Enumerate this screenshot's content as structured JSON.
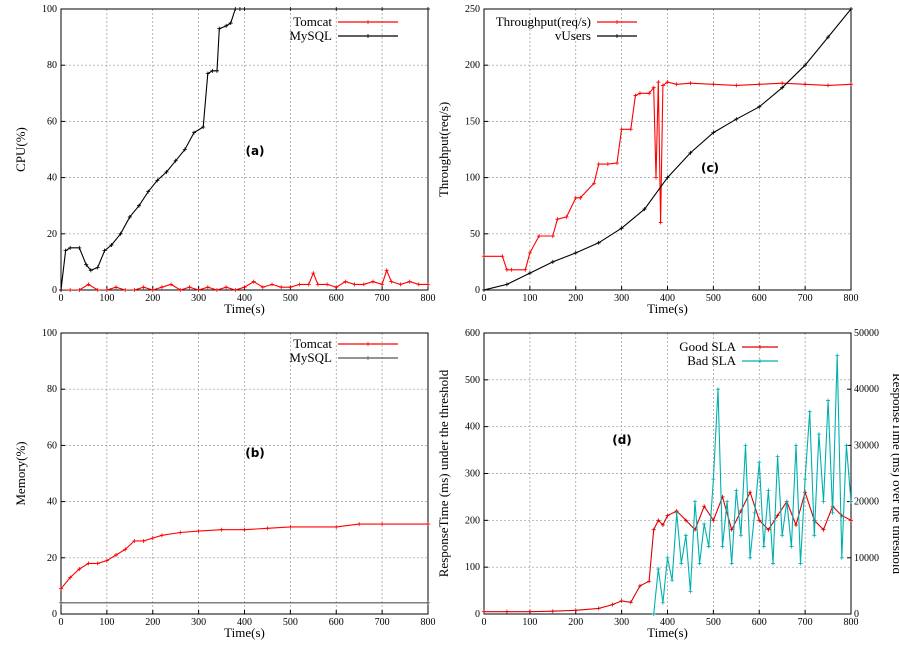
{
  "chart_data": [
    {
      "id": "a",
      "type": "line",
      "panel_label": "(a)",
      "xlabel": "Time(s)",
      "ylabel": "CPU(%)",
      "xlim": [
        0,
        800
      ],
      "ylim": [
        0,
        100
      ],
      "xticks": [
        0,
        100,
        200,
        300,
        400,
        500,
        600,
        700,
        800
      ],
      "yticks": [
        0,
        20,
        40,
        60,
        80,
        100
      ],
      "grid": true,
      "legend_position": "top-right",
      "series": [
        {
          "name": "Tomcat",
          "color": "#ff0000",
          "x": [
            0,
            20,
            40,
            60,
            80,
            100,
            120,
            140,
            160,
            180,
            200,
            220,
            240,
            260,
            280,
            300,
            320,
            340,
            360,
            380,
            400,
            420,
            440,
            460,
            480,
            500,
            520,
            540,
            550,
            560,
            580,
            600,
            620,
            640,
            660,
            680,
            700,
            710,
            720,
            740,
            760,
            780,
            800
          ],
          "y": [
            0,
            0,
            0,
            2,
            0,
            0,
            1,
            0,
            0,
            1,
            0,
            1,
            2,
            0,
            1,
            0,
            1,
            0,
            1,
            0,
            1,
            3,
            1,
            2,
            1,
            1,
            2,
            2,
            6,
            2,
            2,
            1,
            3,
            2,
            2,
            3,
            2,
            7,
            3,
            2,
            3,
            2,
            2
          ]
        },
        {
          "name": "MySQL",
          "color": "#000000",
          "x": [
            0,
            10,
            20,
            40,
            55,
            65,
            80,
            95,
            110,
            130,
            150,
            170,
            190,
            210,
            230,
            250,
            270,
            290,
            310,
            320,
            330,
            340,
            345,
            360,
            370,
            380,
            390,
            400,
            500,
            600,
            700,
            800
          ],
          "y": [
            0,
            14,
            15,
            15,
            9,
            7,
            8,
            14,
            16,
            20,
            26,
            30,
            35,
            39,
            42,
            46,
            50,
            56,
            58,
            77,
            78,
            78,
            93,
            94,
            95,
            100,
            100,
            100,
            100,
            100,
            100,
            100
          ]
        }
      ]
    },
    {
      "id": "c",
      "type": "line",
      "panel_label": "(c)",
      "xlabel": "Time(s)",
      "ylabel": "Throughput(req/s)",
      "xlim": [
        0,
        800
      ],
      "ylim": [
        0,
        250
      ],
      "xticks": [
        0,
        100,
        200,
        300,
        400,
        500,
        600,
        700,
        800
      ],
      "yticks": [
        0,
        50,
        100,
        150,
        200,
        250
      ],
      "grid": true,
      "legend_position": "top-left",
      "series": [
        {
          "name": "Throughput(req/s)",
          "color": "#ff0000",
          "x": [
            0,
            40,
            50,
            60,
            90,
            100,
            120,
            150,
            160,
            180,
            200,
            210,
            240,
            250,
            270,
            290,
            300,
            320,
            330,
            340,
            360,
            370,
            375,
            380,
            385,
            390,
            400,
            420,
            450,
            500,
            550,
            600,
            650,
            700,
            750,
            800
          ],
          "y": [
            30,
            30,
            18,
            18,
            18,
            33,
            48,
            48,
            63,
            65,
            82,
            82,
            95,
            112,
            112,
            113,
            143,
            143,
            173,
            175,
            175,
            180,
            100,
            185,
            60,
            182,
            185,
            183,
            184,
            183,
            182,
            183,
            184,
            183,
            182,
            183
          ]
        },
        {
          "name": "vUsers",
          "color": "#000000",
          "x": [
            0,
            50,
            100,
            150,
            200,
            250,
            300,
            350,
            400,
            450,
            500,
            550,
            600,
            650,
            700,
            750,
            800
          ],
          "y": [
            0,
            5,
            15,
            25,
            33,
            42,
            55,
            72,
            100,
            122,
            140,
            152,
            163,
            180,
            200,
            225,
            250
          ]
        }
      ]
    },
    {
      "id": "b",
      "type": "line",
      "panel_label": "(b)",
      "xlabel": "Time(s)",
      "ylabel": "Memory(%)",
      "xlim": [
        0,
        800
      ],
      "ylim": [
        0,
        100
      ],
      "xticks": [
        0,
        100,
        200,
        300,
        400,
        500,
        600,
        700,
        800
      ],
      "yticks": [
        0,
        20,
        40,
        60,
        80,
        100
      ],
      "grid": true,
      "legend_position": "top-right",
      "series": [
        {
          "name": "Tomcat",
          "color": "#ff0000",
          "x": [
            0,
            20,
            40,
            60,
            80,
            100,
            120,
            140,
            160,
            180,
            200,
            220,
            260,
            300,
            350,
            400,
            450,
            500,
            600,
            650,
            700,
            800
          ],
          "y": [
            9,
            13,
            16,
            18,
            18,
            19,
            21,
            23,
            26,
            26,
            27,
            28,
            29,
            29.5,
            30,
            30,
            30.5,
            31,
            31,
            32,
            32,
            32
          ]
        },
        {
          "name": "MySQL",
          "color": "#555555",
          "x": [
            0,
            800
          ],
          "y": [
            4,
            4
          ]
        }
      ]
    },
    {
      "id": "d",
      "type": "line",
      "panel_label": "(d)",
      "xlabel": "Time(s)",
      "ylabel": "ResponseTime (ms) under the threshold",
      "y2label": "ResponseTime (ms) over the threshold",
      "xlim": [
        0,
        800
      ],
      "ylim": [
        0,
        600
      ],
      "y2lim": [
        0,
        50000
      ],
      "xticks": [
        0,
        100,
        200,
        300,
        400,
        500,
        600,
        700,
        800
      ],
      "yticks": [
        0,
        100,
        200,
        300,
        400,
        500,
        600
      ],
      "y2ticks": [
        0,
        10000,
        20000,
        30000,
        40000,
        50000
      ],
      "grid": true,
      "legend_position": "top-center",
      "series": [
        {
          "name": "Good SLA",
          "color": "#dd0000",
          "axis": "left",
          "x": [
            0,
            50,
            100,
            150,
            200,
            250,
            280,
            300,
            320,
            340,
            360,
            370,
            380,
            390,
            400,
            420,
            440,
            460,
            480,
            500,
            520,
            540,
            560,
            580,
            600,
            620,
            640,
            660,
            680,
            700,
            720,
            740,
            760,
            780,
            800
          ],
          "y": [
            5,
            5,
            5,
            6,
            8,
            12,
            20,
            28,
            25,
            60,
            70,
            180,
            200,
            190,
            210,
            220,
            200,
            180,
            230,
            200,
            250,
            180,
            220,
            260,
            200,
            180,
            210,
            240,
            190,
            260,
            200,
            180,
            230,
            210,
            200
          ]
        },
        {
          "name": "Bad SLA",
          "color": "#00b0b0",
          "axis": "right",
          "x": [
            370,
            380,
            390,
            400,
            410,
            420,
            430,
            440,
            450,
            460,
            470,
            480,
            490,
            500,
            510,
            520,
            530,
            540,
            550,
            560,
            570,
            580,
            590,
            600,
            610,
            620,
            630,
            640,
            650,
            660,
            670,
            680,
            690,
            700,
            710,
            720,
            730,
            740,
            750,
            760,
            770,
            780,
            790,
            800
          ],
          "y": [
            0,
            8000,
            2000,
            10000,
            6000,
            18000,
            9000,
            14000,
            4000,
            20000,
            9000,
            16000,
            12000,
            24000,
            40000,
            12000,
            20000,
            9000,
            22000,
            14000,
            30000,
            10000,
            18000,
            27000,
            12000,
            22000,
            9000,
            28000,
            14000,
            20000,
            12000,
            30000,
            9000,
            24000,
            36000,
            14000,
            32000,
            20000,
            38000,
            18000,
            46000,
            10000,
            30000,
            20000
          ]
        }
      ]
    }
  ]
}
